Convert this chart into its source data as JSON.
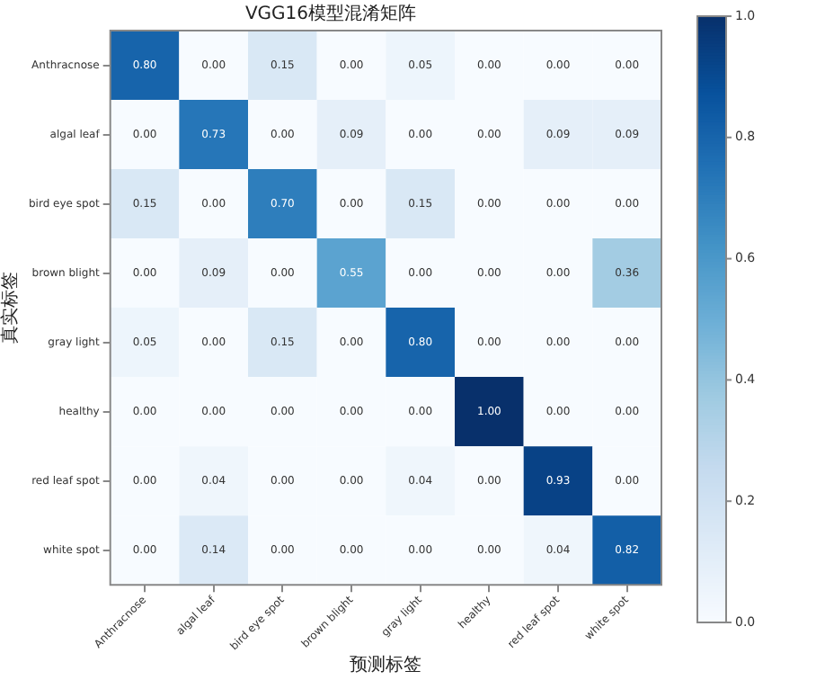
{
  "chart_data": {
    "type": "heatmap",
    "title": "VGG16模型混淆矩阵",
    "xlabel": "预测标签",
    "ylabel": "真实标签",
    "categories": [
      "Anthracnose",
      "algal leaf",
      "bird eye spot",
      "brown blight",
      "gray light",
      "healthy",
      "red leaf spot",
      "white spot"
    ],
    "y_categories": [
      "Anthracnose",
      "algal leaf",
      "bird eye spot",
      "brown blight",
      "gray light",
      "healthy",
      "red leaf spot",
      "white spot"
    ],
    "cells": [
      [
        0.8,
        0.0,
        0.15,
        0.0,
        0.05,
        0.0,
        0.0,
        0.0
      ],
      [
        0.0,
        0.73,
        0.0,
        0.09,
        0.0,
        0.0,
        0.09,
        0.09
      ],
      [
        0.15,
        0.0,
        0.7,
        0.0,
        0.15,
        0.0,
        0.0,
        0.0
      ],
      [
        0.0,
        0.09,
        0.0,
        0.55,
        0.0,
        0.0,
        0.0,
        0.36
      ],
      [
        0.05,
        0.0,
        0.15,
        0.0,
        0.8,
        0.0,
        0.0,
        0.0
      ],
      [
        0.0,
        0.0,
        0.0,
        0.0,
        0.0,
        1.0,
        0.0,
        0.0
      ],
      [
        0.0,
        0.04,
        0.0,
        0.0,
        0.04,
        0.0,
        0.93,
        0.0
      ],
      [
        0.0,
        0.14,
        0.0,
        0.0,
        0.0,
        0.0,
        0.04,
        0.82
      ]
    ],
    "cell_labels": [
      [
        "0.80",
        "0.00",
        "0.15",
        "0.00",
        "0.05",
        "0.00",
        "0.00",
        "0.00"
      ],
      [
        "0.00",
        "0.73",
        "0.00",
        "0.09",
        "0.00",
        "0.00",
        "0.09",
        "0.09"
      ],
      [
        "0.15",
        "0.00",
        "0.70",
        "0.00",
        "0.15",
        "0.00",
        "0.00",
        "0.00"
      ],
      [
        "0.00",
        "0.09",
        "0.00",
        "0.55",
        "0.00",
        "0.00",
        "0.00",
        "0.36"
      ],
      [
        "0.05",
        "0.00",
        "0.15",
        "0.00",
        "0.80",
        "0.00",
        "0.00",
        "0.00"
      ],
      [
        "0.00",
        "0.00",
        "0.00",
        "0.00",
        "0.00",
        "1.00",
        "0.00",
        "0.00"
      ],
      [
        "0.00",
        "0.04",
        "0.00",
        "0.00",
        "0.04",
        "0.00",
        "0.93",
        "0.00"
      ],
      [
        "0.00",
        "0.14",
        "0.00",
        "0.00",
        "0.00",
        "0.00",
        "0.04",
        "0.82"
      ]
    ],
    "clim": [
      0,
      1
    ],
    "cticks": [
      {
        "value": 0,
        "label": "0.0"
      },
      {
        "value": 0.2,
        "label": "0.2"
      },
      {
        "value": 0.4,
        "label": "0.4"
      },
      {
        "value": 0.6,
        "label": "0.6"
      },
      {
        "value": 0.8,
        "label": "0.8"
      },
      {
        "value": 1,
        "label": "1.0"
      }
    ],
    "data_labels": true,
    "grid": false,
    "legend": false
  }
}
